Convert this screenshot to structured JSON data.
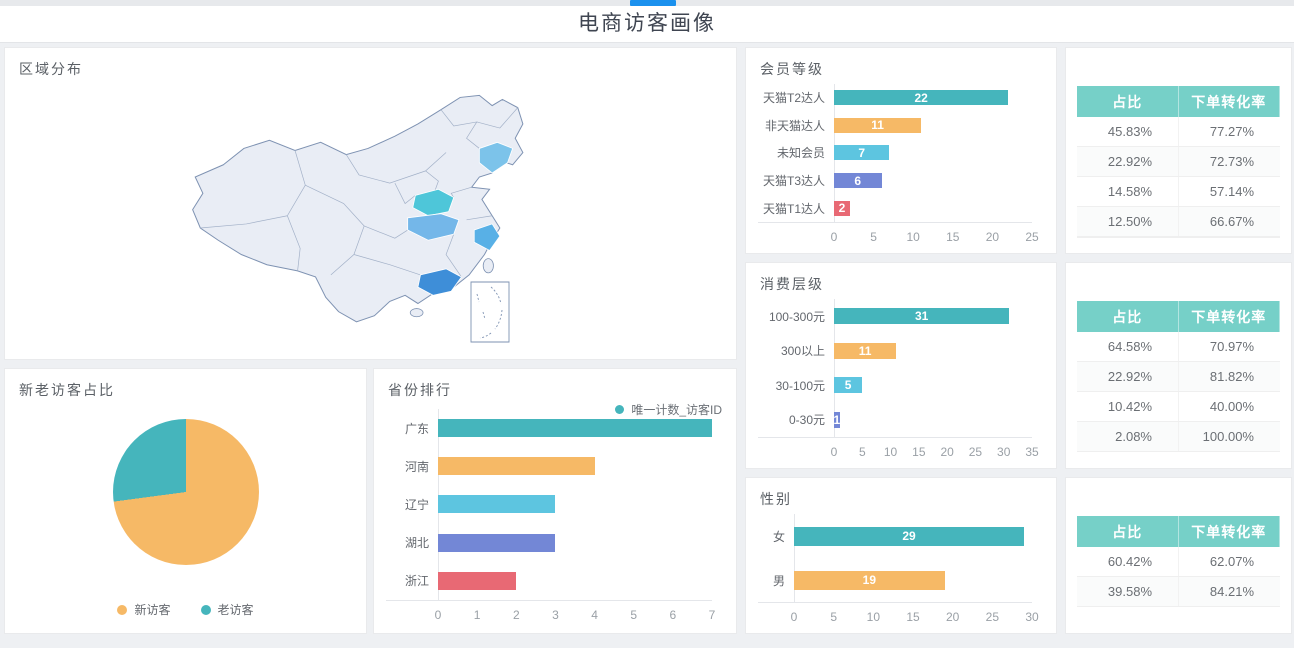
{
  "page": {
    "title": "电商访客画像"
  },
  "palette": {
    "teal": "#45b5bc",
    "orange": "#f6b966",
    "light_blue": "#5dc5e0",
    "purple_blue": "#7387d6",
    "red": "#e86974",
    "table_header": "#76d0c8",
    "tab_blue": "#1b91ee"
  },
  "cards": {
    "region": {
      "title": "区域分布"
    },
    "pie": {
      "title": "新老访客占比"
    },
    "province": {
      "title": "省份排行",
      "legend": "唯一计数_访客ID"
    },
    "member": {
      "title": "会员等级"
    },
    "consume": {
      "title": "消费层级"
    },
    "gender": {
      "title": "性别"
    }
  },
  "chart_data": [
    {
      "id": "member_level",
      "type": "bar",
      "orientation": "horizontal",
      "title": "会员等级",
      "categories": [
        "天猫T2达人",
        "非天猫达人",
        "未知会员",
        "天猫T3达人",
        "天猫T1达人"
      ],
      "values": [
        22,
        11,
        7,
        6,
        2
      ],
      "colors": [
        "#45b5bc",
        "#f6b966",
        "#5dc5e0",
        "#7387d6",
        "#e86974"
      ],
      "xticks": [
        0,
        5,
        10,
        15,
        20,
        25
      ],
      "xmax": 25,
      "show_values": true,
      "grid": false
    },
    {
      "id": "consume_level",
      "type": "bar",
      "orientation": "horizontal",
      "title": "消费层级",
      "categories": [
        "100-300元",
        "300以上",
        "30-100元",
        "0-30元"
      ],
      "values": [
        31,
        11,
        5,
        1
      ],
      "colors": [
        "#45b5bc",
        "#f6b966",
        "#5dc5e0",
        "#7387d6"
      ],
      "xticks": [
        0,
        5,
        10,
        15,
        20,
        25,
        30,
        35
      ],
      "xmax": 35,
      "show_values": true,
      "grid": false
    },
    {
      "id": "gender",
      "type": "bar",
      "orientation": "horizontal",
      "title": "性别",
      "categories": [
        "女",
        "男"
      ],
      "values": [
        29,
        19
      ],
      "colors": [
        "#45b5bc",
        "#f6b966"
      ],
      "xticks": [
        0,
        5,
        10,
        15,
        20,
        25,
        30
      ],
      "xmax": 30,
      "show_values": true,
      "grid": false
    },
    {
      "id": "province_rank",
      "type": "bar",
      "orientation": "horizontal",
      "title": "省份排行",
      "legend": "唯一计数_访客ID",
      "legend_position": "top-right",
      "categories": [
        "广东",
        "河南",
        "辽宁",
        "湖北",
        "浙江"
      ],
      "values": [
        7,
        4,
        3,
        3,
        2
      ],
      "colors": [
        "#45b5bc",
        "#f6b966",
        "#5dc5e0",
        "#7387d6",
        "#e86974"
      ],
      "xticks": [
        0,
        1,
        2,
        3,
        4,
        5,
        6,
        7
      ],
      "xmax": 7,
      "show_values": false,
      "grid": false
    },
    {
      "id": "visitor_pie",
      "type": "pie",
      "title": "新老访客占比",
      "legend_position": "bottom",
      "slices": [
        {
          "label": "新访客",
          "pct": 72.9,
          "color": "#f6b966"
        },
        {
          "label": "老访客",
          "pct": 27.1,
          "color": "#45b5bc"
        }
      ]
    }
  ],
  "tables": [
    {
      "id": "member_table",
      "headers": [
        "占比",
        "下单转化率"
      ],
      "rows": [
        [
          "45.83%",
          "77.27%"
        ],
        [
          "22.92%",
          "72.73%"
        ],
        [
          "14.58%",
          "57.14%"
        ],
        [
          "12.50%",
          "66.67%"
        ]
      ],
      "clipped_extra_row": true
    },
    {
      "id": "consume_table",
      "headers": [
        "占比",
        "下单转化率"
      ],
      "rows": [
        [
          "64.58%",
          "70.97%"
        ],
        [
          "22.92%",
          "81.82%"
        ],
        [
          "10.42%",
          "40.00%"
        ],
        [
          "2.08%",
          "100.00%"
        ]
      ],
      "clipped_extra_row": false
    },
    {
      "id": "gender_table",
      "headers": [
        "占比",
        "下单转化率"
      ],
      "rows": [
        [
          "60.42%",
          "62.07%"
        ],
        [
          "39.58%",
          "84.21%"
        ]
      ],
      "clipped_extra_row": false
    }
  ],
  "map": {
    "title": "区域分布",
    "base_color": "#e9edf5",
    "border_color": "#7e92b2",
    "highlights": [
      {
        "name": "辽宁",
        "color": "#7cc3ea"
      },
      {
        "name": "河南",
        "color": "#4ec6d9"
      },
      {
        "name": "湖北",
        "color": "#74b7e9"
      },
      {
        "name": "浙江",
        "color": "#58b0e6"
      },
      {
        "name": "广东",
        "color": "#3e8ed8"
      }
    ]
  }
}
